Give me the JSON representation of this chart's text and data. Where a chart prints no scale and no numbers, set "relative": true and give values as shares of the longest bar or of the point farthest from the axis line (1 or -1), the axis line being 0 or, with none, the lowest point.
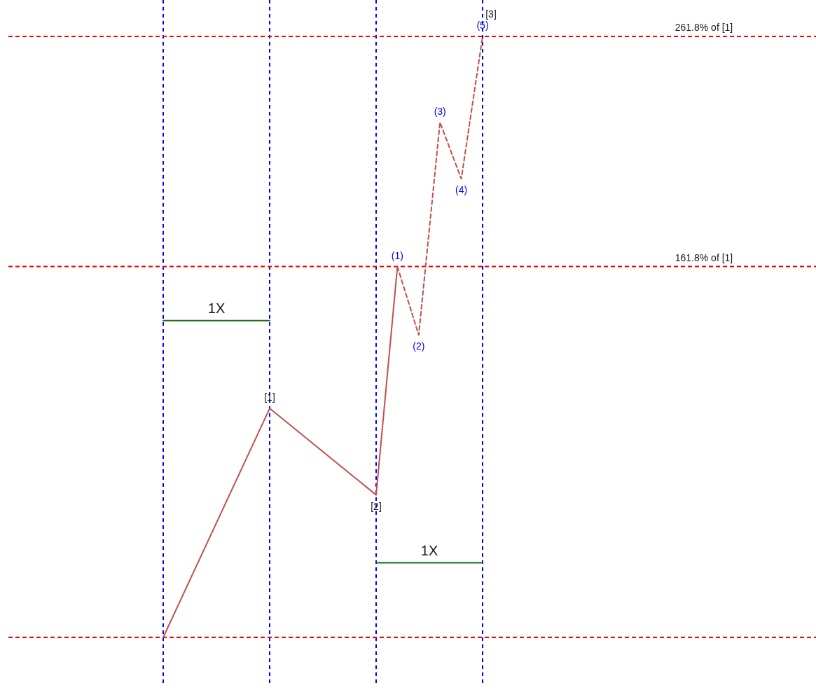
{
  "chart_data": {
    "type": "line",
    "relative": true,
    "grid": "x",
    "categories": [
      null,
      null,
      null,
      null,
      null,
      null,
      null,
      null,
      null,
      null,
      null,
      null,
      null,
      null,
      null,
      null
    ],
    "series": [
      {
        "color": "#c0504d",
        "line_style": "solid",
        "values": [
          0,
          null,
          null,
          null,
          null,
          0.381,
          null,
          null,
          null,
          null,
          0.237,
          0.617,
          null,
          null,
          null,
          null
        ]
      },
      {
        "color": "#c0504d",
        "line_style": "dashed",
        "values": [
          null,
          null,
          null,
          null,
          null,
          null,
          null,
          null,
          null,
          null,
          null,
          0.617,
          0.503,
          0.857,
          0.763,
          1
        ]
      },
      {
        "color": "#1a6b1a",
        "line_style": "solid",
        "values": [
          0.527,
          null,
          null,
          null,
          null,
          0.527,
          null,
          null,
          null,
          null,
          null,
          null,
          null,
          null,
          null,
          null
        ]
      },
      {
        "color": "#1a6b1a",
        "line_style": "solid",
        "values": [
          null,
          null,
          null,
          null,
          null,
          null,
          null,
          null,
          null,
          null,
          0.124,
          null,
          null,
          null,
          null,
          0.124
        ]
      }
    ],
    "ref_lines": [
      {
        "axis": "y",
        "value": 0,
        "color": "#ff0000",
        "line_style": "dashed"
      },
      {
        "axis": "y",
        "value": 0.617,
        "label": "161.8% of [1]",
        "color": "#ff0000",
        "line_style": "dashed"
      },
      {
        "axis": "y",
        "value": 1,
        "label": "261.8% of [1]",
        "color": "#ff0000",
        "line_style": "dashed"
      }
    ],
    "annotations": [
      {
        "text": "[1]",
        "y": 0.381
      },
      {
        "text": "[2]",
        "y": 0.237
      },
      {
        "text": "(1)",
        "y": 0.617
      },
      {
        "text": "(2)",
        "y": 0.503
      },
      {
        "text": "(3)",
        "y": 0.857
      },
      {
        "text": "(4)",
        "y": 0.763
      },
      {
        "text": "(5)",
        "y": 1
      },
      {
        "text": "[3]",
        "y": 1
      },
      {
        "text": "1X",
        "y": 0.527
      },
      {
        "text": "1X",
        "y": 0.124
      }
    ]
  }
}
